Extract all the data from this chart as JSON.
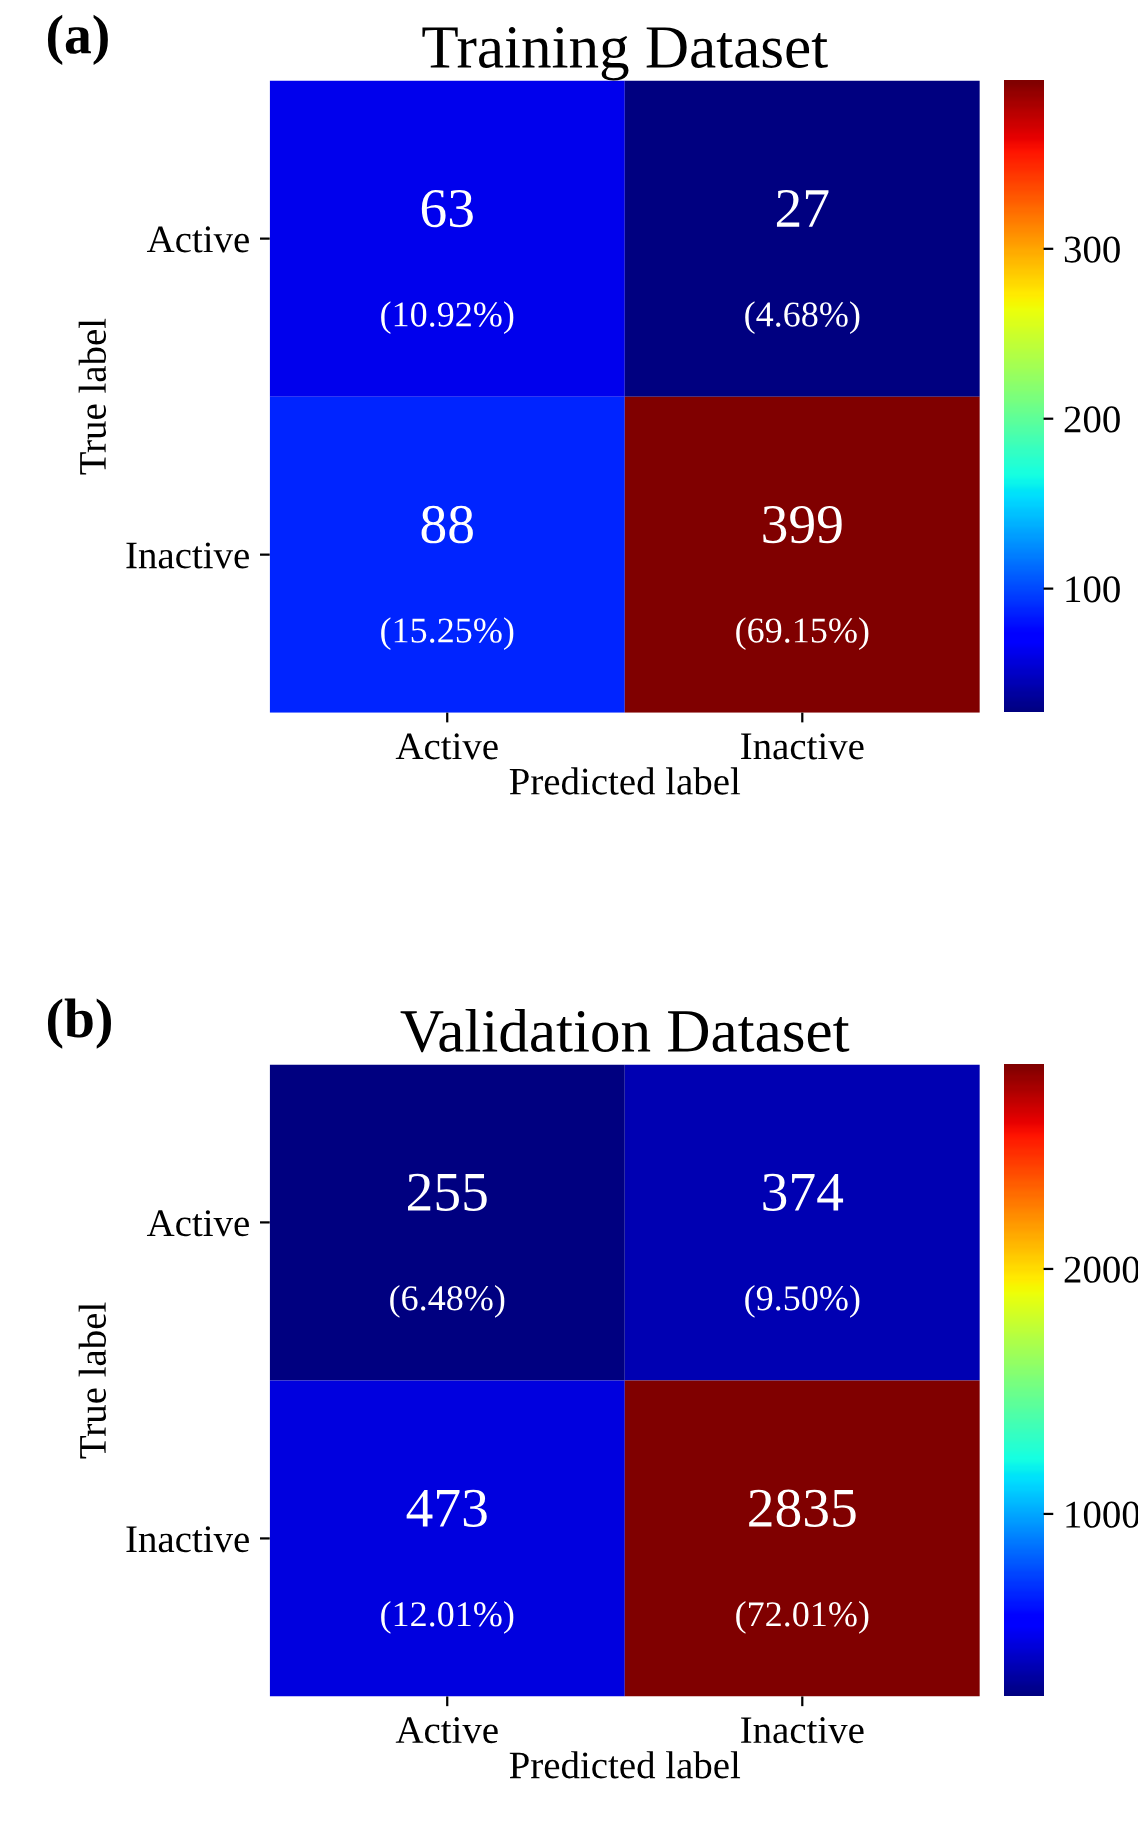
{
  "chart_data": [
    {
      "type": "heatmap",
      "title": "Training Dataset",
      "xlabel": "Predicted label",
      "ylabel": "True label",
      "categories": [
        "Active",
        "Inactive"
      ],
      "y_categories": [
        "Active",
        "Inactive"
      ],
      "cells": [
        [
          63,
          27
        ],
        [
          88,
          399
        ]
      ],
      "cell_labels": [
        [
          "63\n(10.92%)",
          "27\n(4.68%)"
        ],
        [
          "88\n(15.25%)",
          "399\n(69.15%)"
        ]
      ],
      "clim": [
        27,
        399
      ],
      "cticks": [
        100,
        200,
        300
      ],
      "annotations": [
        "(a)"
      ]
    },
    {
      "type": "heatmap",
      "title": "Validation Dataset",
      "xlabel": "Predicted label",
      "ylabel": "True label",
      "categories": [
        "Active",
        "Inactive"
      ],
      "y_categories": [
        "Active",
        "Inactive"
      ],
      "cells": [
        [
          255,
          374
        ],
        [
          473,
          2835
        ]
      ],
      "cell_labels": [
        [
          "255\n(6.48%)",
          "374\n(9.50%)"
        ],
        [
          "473\n(12.01%)",
          "2835\n(72.01%)"
        ]
      ],
      "clim": [
        255,
        2835
      ],
      "cticks": [
        1000,
        2000
      ],
      "annotations": [
        "(b)"
      ]
    }
  ]
}
